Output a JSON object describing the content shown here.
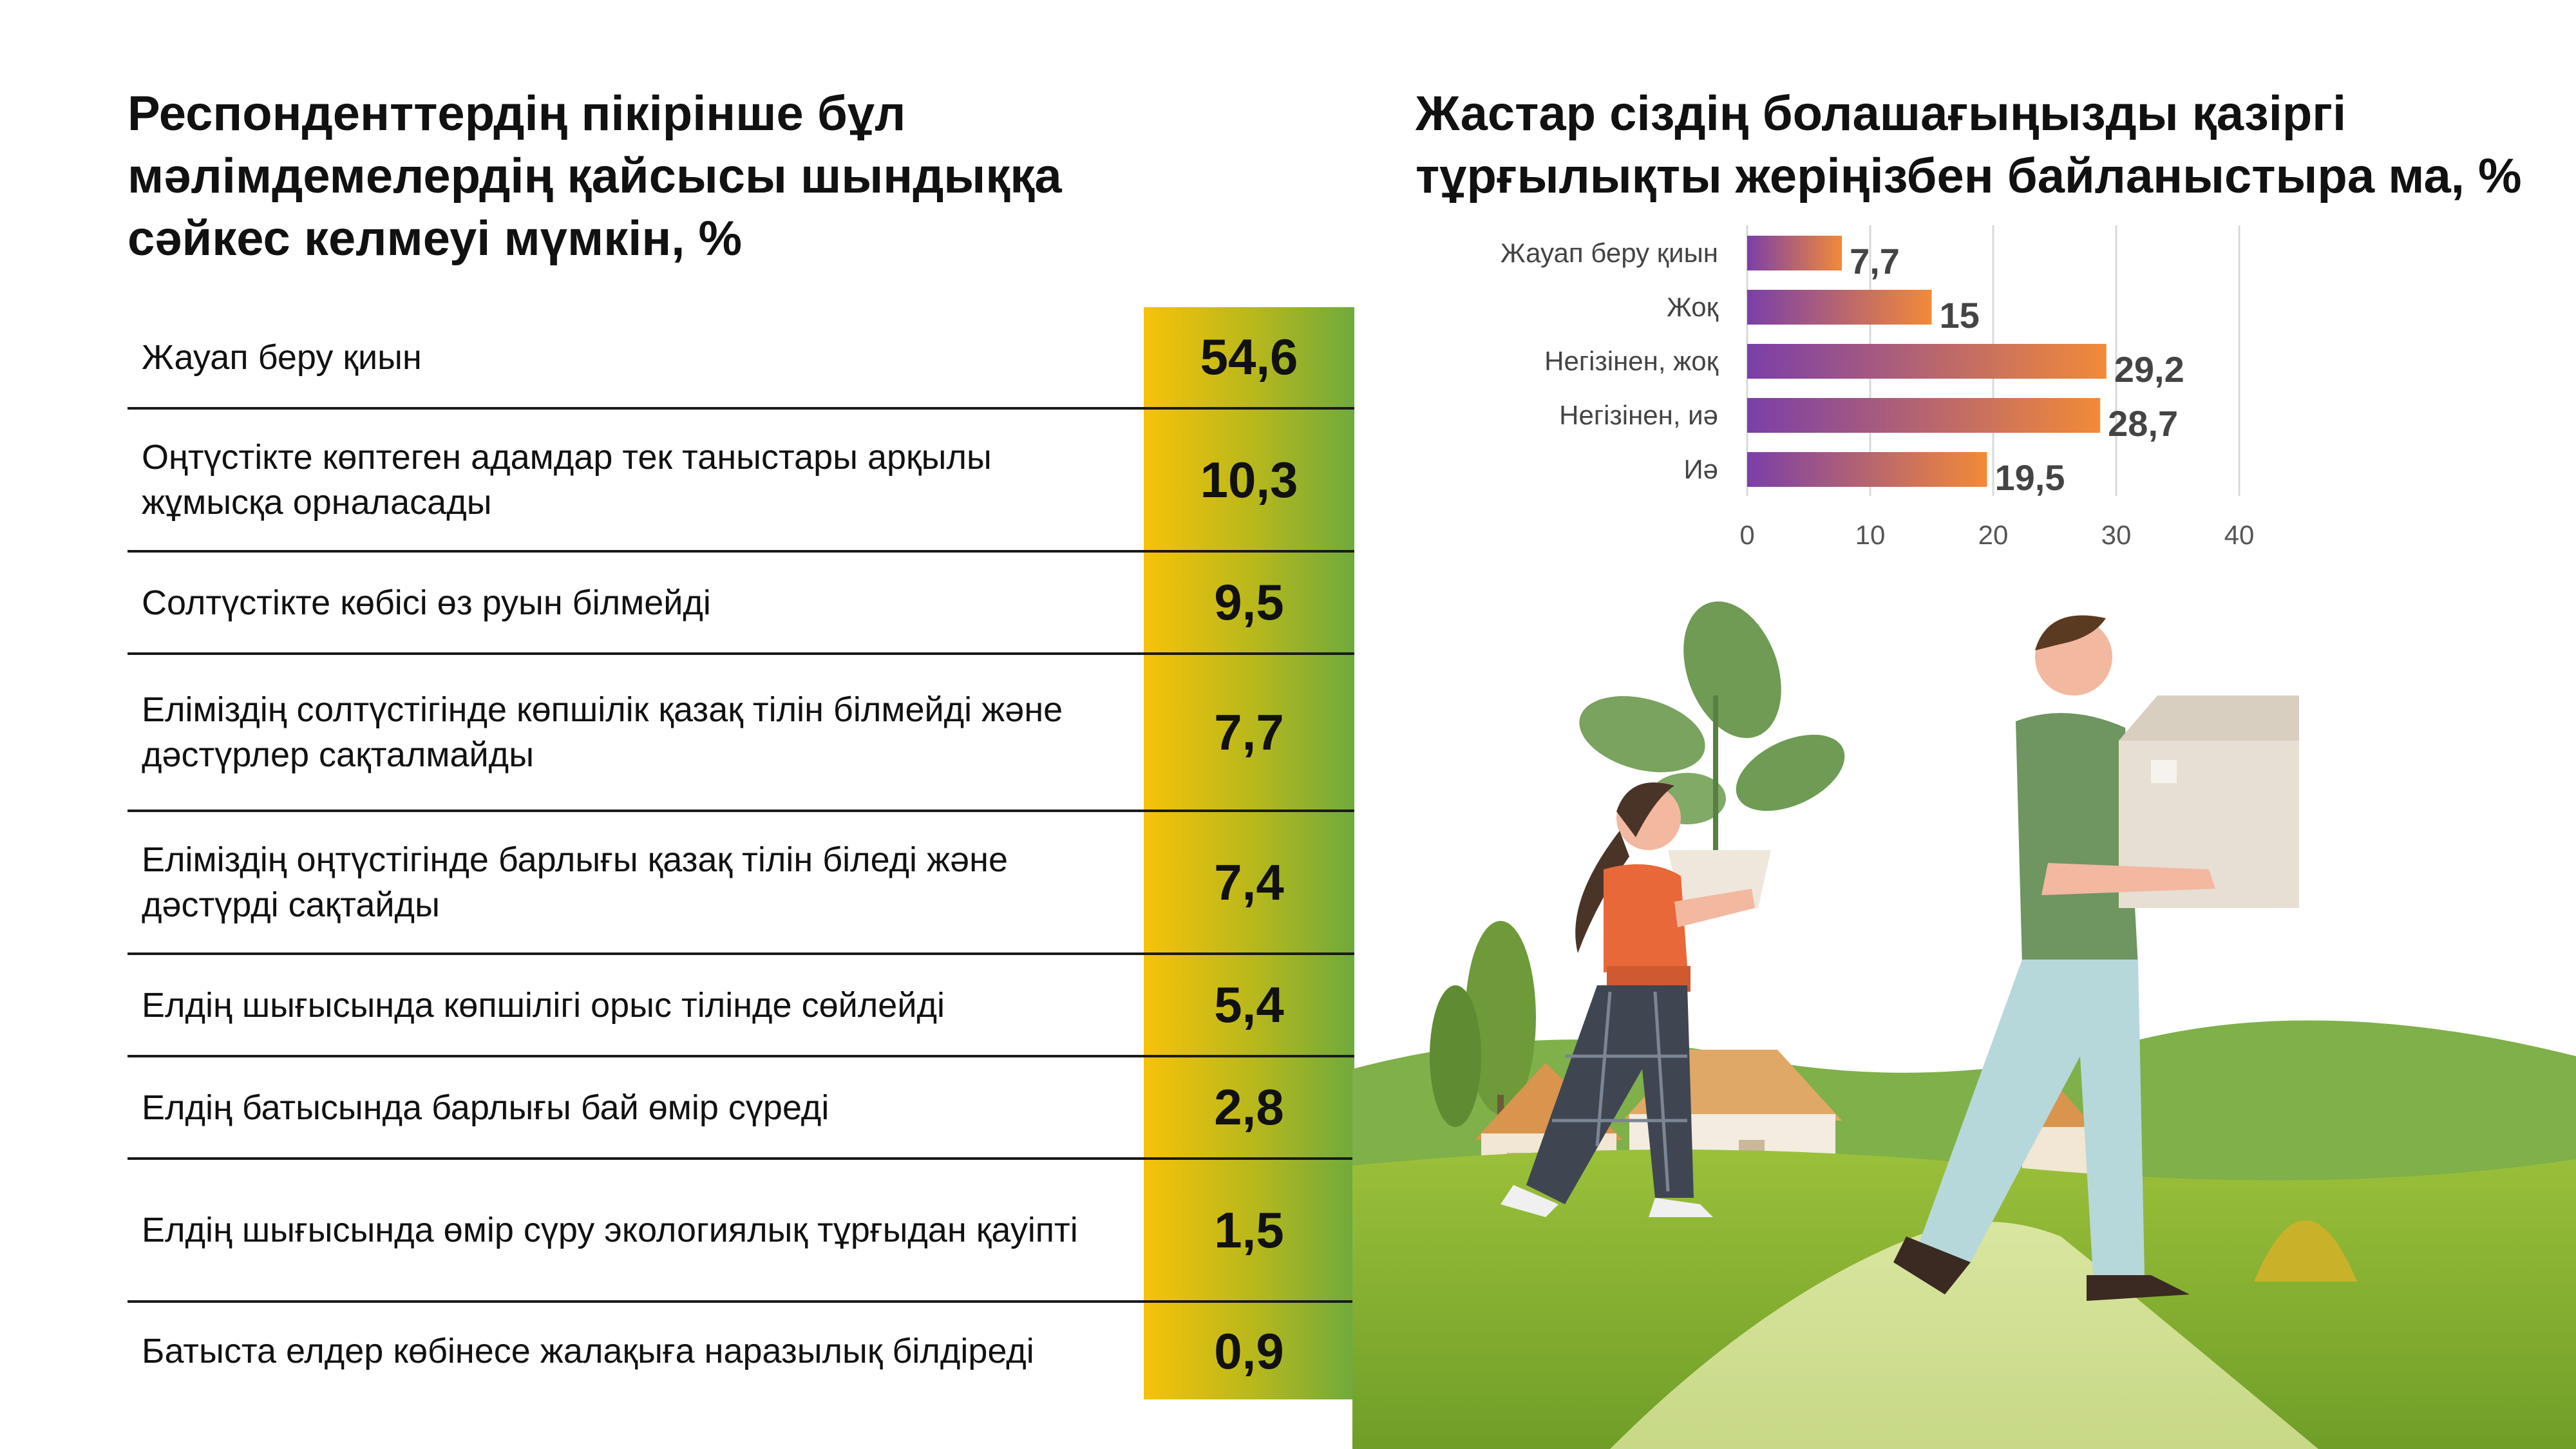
{
  "left": {
    "title": "Респонденттердің пікірінше бұл мәлімдемелердің қайсысы шындыққа сәйкес келмеуі мүмкін, %",
    "rows": [
      {
        "label": "Жауап беру қиын",
        "value": "54,6"
      },
      {
        "label": "Оңтүстікте көптеген адамдар тек таныстары арқылы жұмысқа орналасады",
        "value": "10,3"
      },
      {
        "label": "Солтүстікте көбісі өз руын білмейді",
        "value": "9,5"
      },
      {
        "label": "Еліміздің солтүстігінде көпшілік қазақ тілін білмейді және дәстүрлер сақталмайды",
        "value": "7,7"
      },
      {
        "label": "Еліміздің оңтүстігінде барлығы қазақ тілін біледі және дәстүрді сақтайды",
        "value": "7,4"
      },
      {
        "label": "Елдің шығысында көпшілігі орыс тілінде сөйлейді",
        "value": "5,4"
      },
      {
        "label": "Елдің батысында барлығы бай өмір сүреді",
        "value": "2,8"
      },
      {
        "label": "Елдің шығысында өмір сүру экологиялық тұрғыдан қауіпті",
        "value": "1,5"
      },
      {
        "label": "Батыста елдер көбінесе жалақыға наразылық білдіреді",
        "value": "0,9"
      }
    ]
  },
  "chart_data": {
    "type": "bar",
    "orientation": "horizontal",
    "title": "Жастар сіздің болашағыңызды қазіргі тұрғылықты жеріңізбен байланыстыра ма, %",
    "categories": [
      "Жауап беру қиын",
      "Жоқ",
      "Негізінен, жоқ",
      "Негізінен, иә",
      "Иә"
    ],
    "values": [
      7.7,
      15,
      29.2,
      28.7,
      19.5
    ],
    "value_labels": [
      "7,7",
      "15",
      "29,2",
      "28,7",
      "19,5"
    ],
    "xlim": [
      0,
      40
    ],
    "xticks": [
      "0",
      "10",
      "20",
      "30",
      "40"
    ],
    "grid": true,
    "colors": {
      "bar_start": "#7a3fa8",
      "bar_end": "#f28a38"
    }
  }
}
